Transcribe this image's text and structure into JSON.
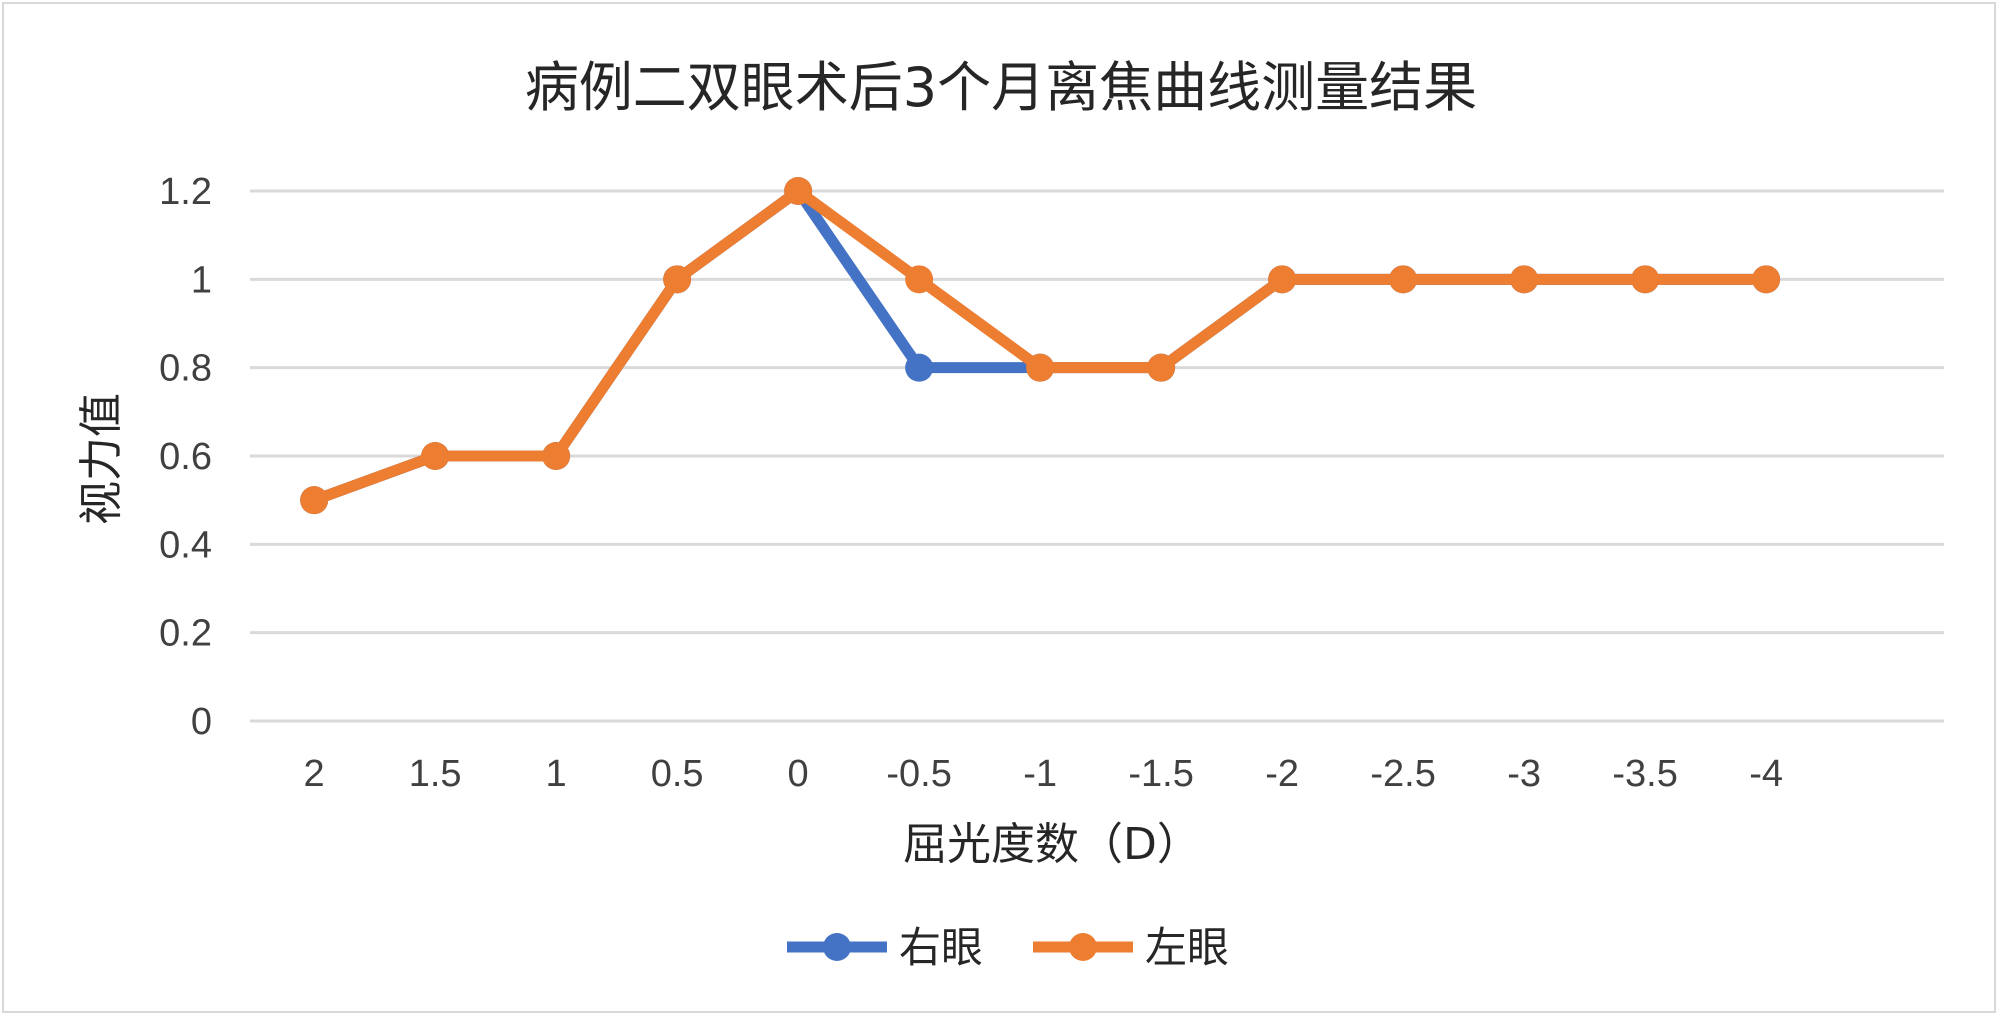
{
  "chart_data": {
    "type": "line",
    "title": "病例二双眼术后3个月离焦曲线测量结果",
    "xlabel": "屈光度数（D）",
    "ylabel": "视力值",
    "categories": [
      "2",
      "1.5",
      "1",
      "0.5",
      "0",
      "-0.5",
      "-1",
      "-1.5",
      "-2",
      "-2.5",
      "-3",
      "-3.5",
      "-4"
    ],
    "y_ticks": [
      "0",
      "0.2",
      "0.4",
      "0.6",
      "0.8",
      "1",
      "1.2"
    ],
    "ylim": [
      0,
      1.2
    ],
    "grid": true,
    "legend_position": "bottom",
    "series": [
      {
        "name": "右眼",
        "color": "#4472c4",
        "values": [
          0.5,
          0.6,
          0.6,
          1.0,
          1.2,
          0.8,
          0.8,
          0.8,
          1.0,
          1.0,
          1.0,
          1.0,
          1.0
        ]
      },
      {
        "name": "左眼",
        "color": "#ed7d31",
        "values": [
          0.5,
          0.6,
          0.6,
          1.0,
          1.2,
          1.0,
          0.8,
          0.8,
          1.0,
          1.0,
          1.0,
          1.0,
          1.0
        ]
      }
    ]
  }
}
